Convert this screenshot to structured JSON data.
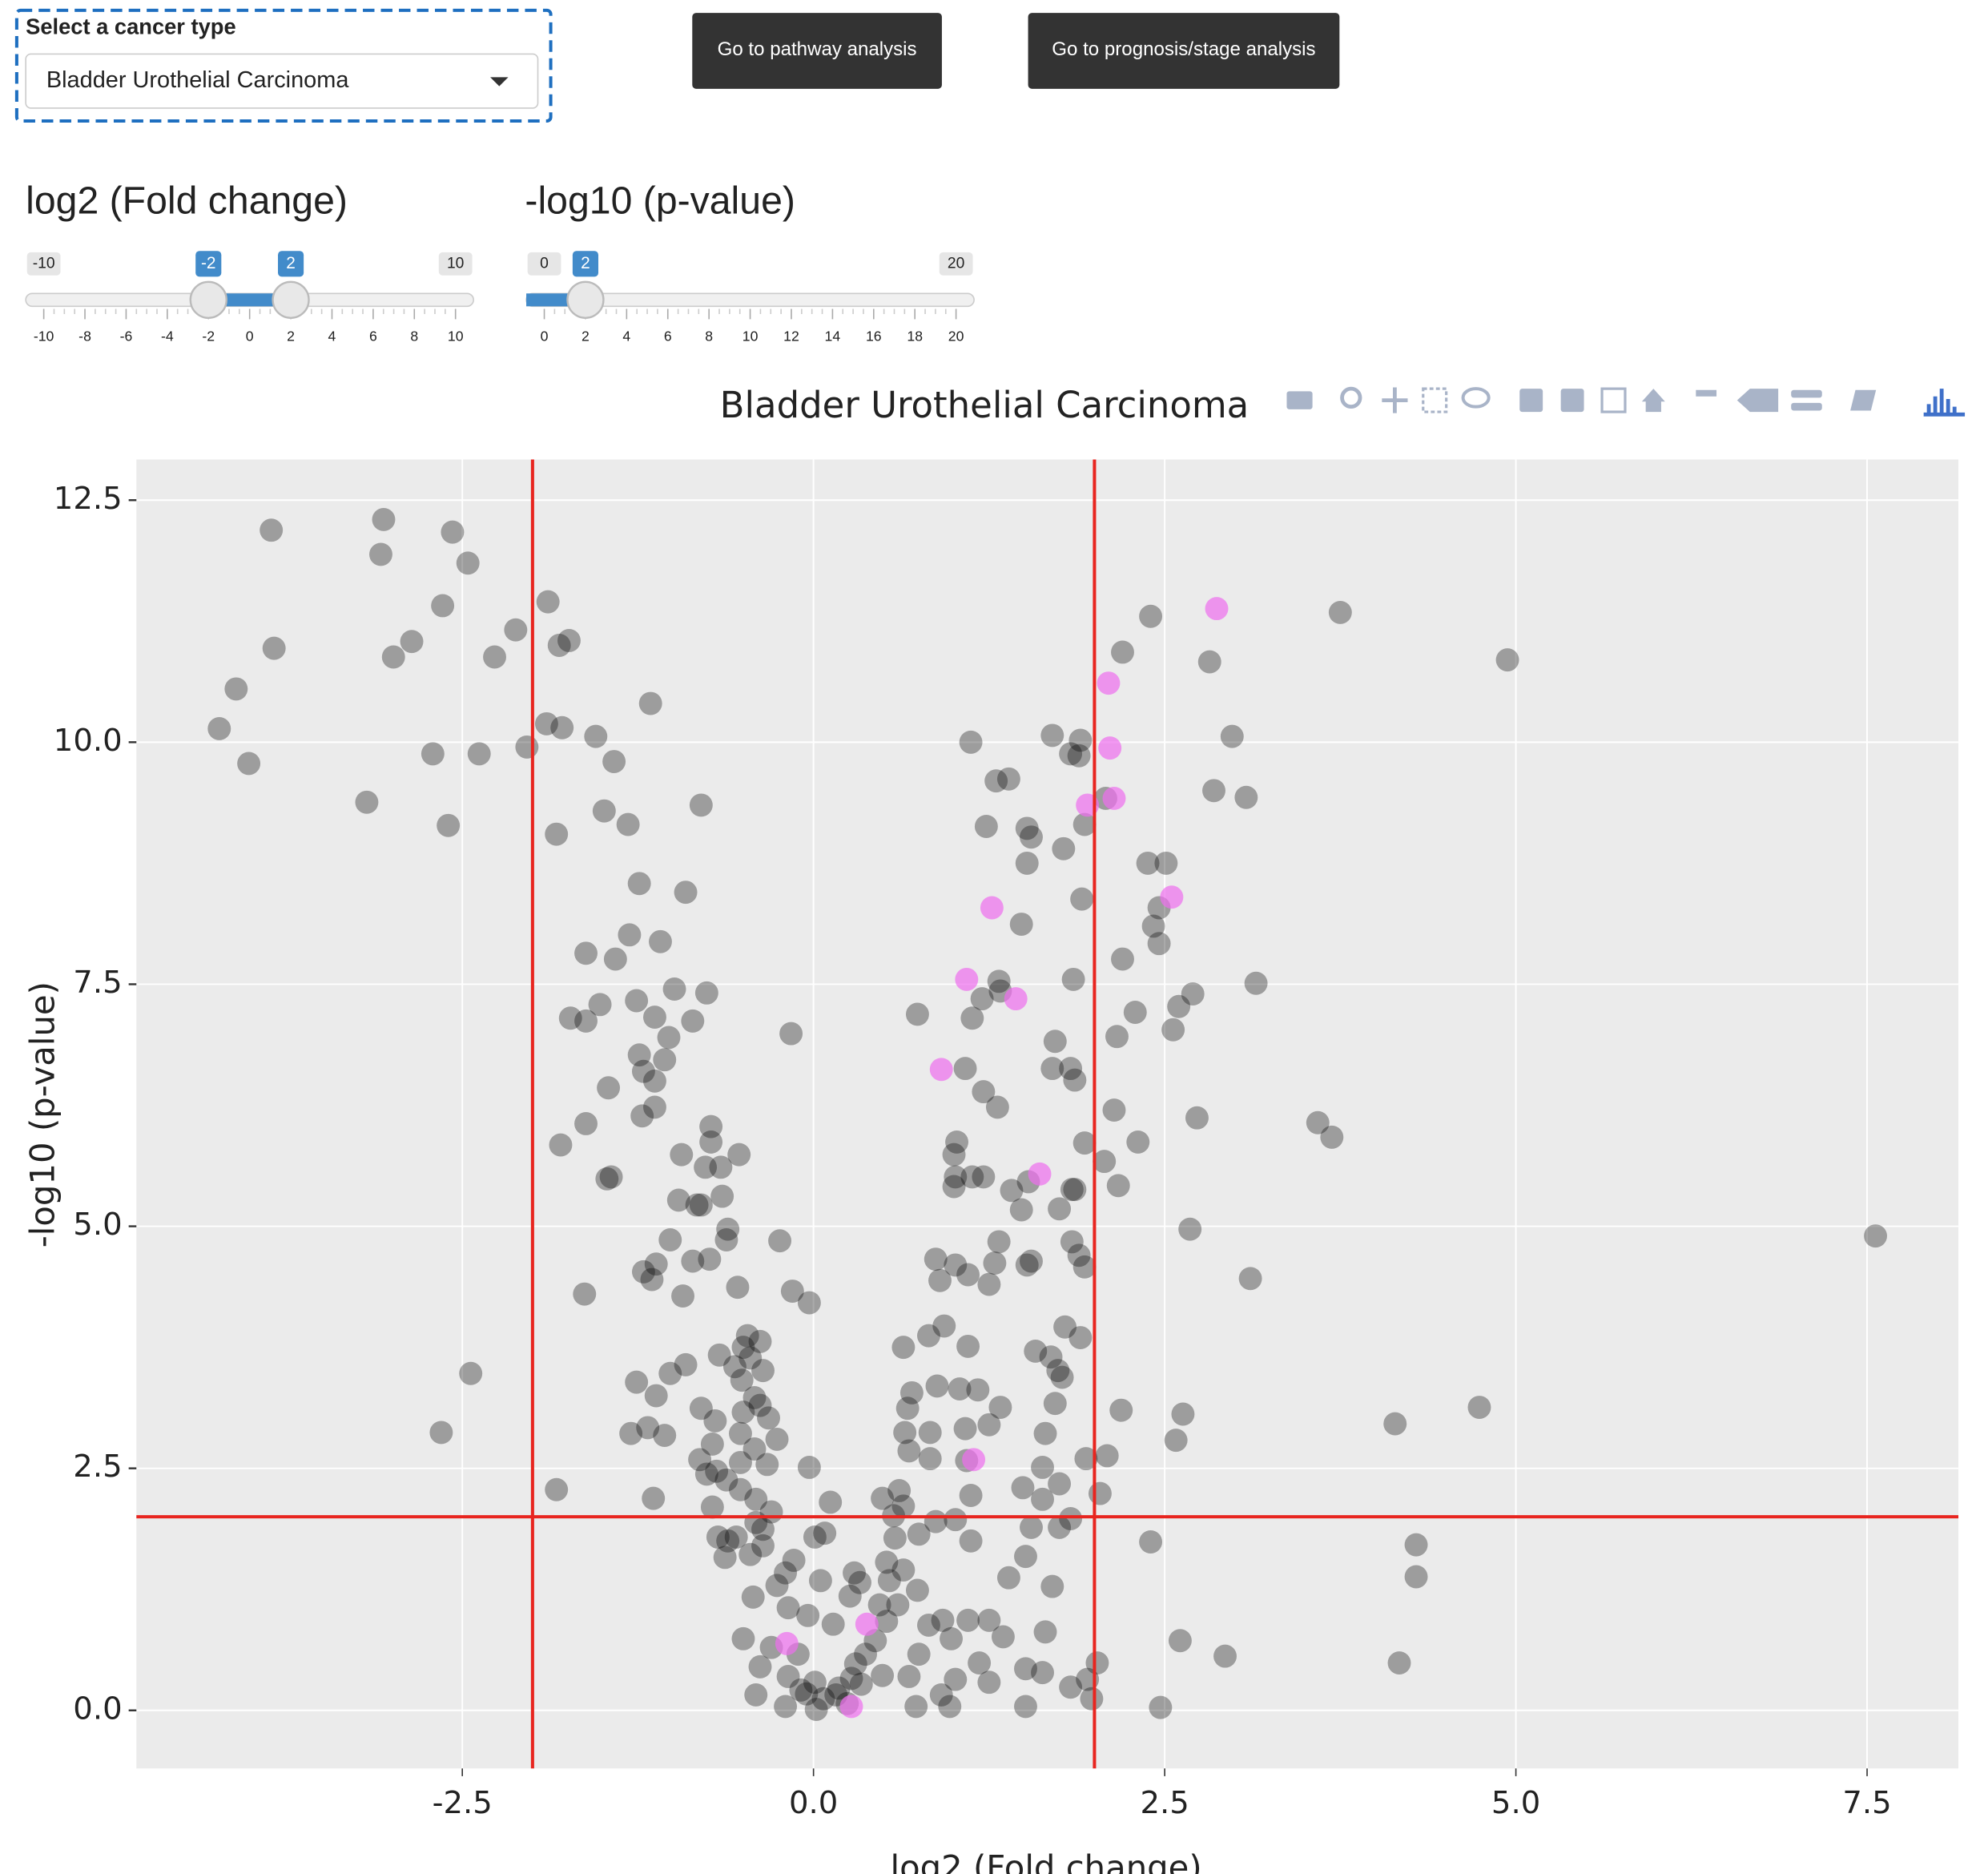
{
  "selector": {
    "label": "Select a cancer type",
    "selected": "Bladder Urothelial Carcinoma"
  },
  "buttons": [
    "Go to pathway analysis",
    "Go to prognosis/stage analysis"
  ],
  "sliders": [
    {
      "label": "log2 (Fold change)",
      "min": -10,
      "max": 10,
      "values": [
        -2,
        2
      ],
      "ticks": [
        -10,
        -8,
        -6,
        -4,
        -2,
        0,
        2,
        4,
        6,
        8,
        10
      ]
    },
    {
      "label": "-log10 (p-value)",
      "min": 0,
      "max": 20,
      "values": [
        2
      ],
      "ticks": [
        0,
        2,
        4,
        6,
        8,
        10,
        12,
        14,
        16,
        18,
        20
      ]
    }
  ],
  "chart_data": {
    "type": "scatter",
    "title": "Bladder Urothelial Carcinoma",
    "x_label": "log2 (Fold change)",
    "y_label": "-log10 (p-value)",
    "xlim": [
      -4.82,
      8.15
    ],
    "ylim": [
      -0.6,
      12.92
    ],
    "xticks": [
      {
        "value": -2.5,
        "label": "-2.5"
      },
      {
        "value": 0,
        "label": "0.0"
      },
      {
        "value": 2.5,
        "label": "2.5"
      },
      {
        "value": 5,
        "label": "5.0"
      },
      {
        "value": 7.5,
        "label": "7.5"
      }
    ],
    "yticks": [
      {
        "value": 0,
        "label": "0.0"
      },
      {
        "value": 2.5,
        "label": "2.5"
      },
      {
        "value": 5,
        "label": "5.0"
      },
      {
        "value": 7.5,
        "label": "7.5"
      },
      {
        "value": 10,
        "label": "10.0"
      },
      {
        "value": 12.5,
        "label": "12.5"
      }
    ],
    "grid": true,
    "thresholds": {
      "x": [
        -2,
        2
      ],
      "y": 2,
      "color": "#e8251f"
    },
    "series": [
      {
        "color": "rgba(0,0,0,0.33)",
        "x": [
          -3.86,
          -3.06,
          -2.57,
          -2.46,
          -3.08,
          -3.84,
          -4.11,
          -4.23,
          -4.02,
          -2.64,
          -2.86,
          -2.99,
          -2.27,
          -2.12,
          -1.89,
          -1.81,
          -1.74,
          -2.71,
          -2.38,
          -2.04,
          -1.9,
          -1.79,
          -3.18,
          -2.6,
          -1.55,
          -1.42,
          -1.16,
          -1.83,
          -1.49,
          -1.32,
          -0.8,
          -1.24,
          -0.91,
          -1.31,
          -1.09,
          -1.62,
          -1.41,
          -0.99,
          -0.76,
          -1.52,
          -1.26,
          -1.73,
          -1.62,
          -1.13,
          -0.86,
          -1.03,
          -1.24,
          -1.06,
          -1.21,
          -1.13,
          -1.46,
          -1.13,
          -1.22,
          -1.62,
          -1.8,
          -0.73,
          -0.73,
          -0.94,
          -0.53,
          -0.77,
          -0.66,
          -1.47,
          -1.44,
          -0.65,
          -0.96,
          -0.83,
          -0.8,
          -0.61,
          -0.62,
          -1.02,
          -0.24,
          -1.12,
          -0.86,
          -0.74,
          -1.21,
          -1.15,
          -0.54,
          -1.63,
          -0.93,
          -0.15,
          -0.03,
          -0.47,
          -0.38,
          -0.5,
          -0.67,
          -0.45,
          -0.91,
          -0.56,
          -0.36,
          -2.44,
          -1.02,
          -1.26,
          -0.51,
          -1.12,
          -0.42,
          -0.38,
          -0.8,
          -0.5,
          -0.32,
          -0.7,
          -1.18,
          -2.65,
          -1.3,
          -1.06,
          -0.52,
          -0.26,
          -0.72,
          -0.42,
          -0.81,
          -0.52,
          -0.33,
          -0.03,
          -0.69,
          -0.76,
          -0.62,
          -0.52,
          -1.83,
          -1.14,
          -0.41,
          0.12,
          -0.72,
          -0.3,
          -0.41,
          -0.36,
          -0.55,
          -0.61,
          -0.68,
          0.08,
          0.01,
          -0.36,
          -0.45,
          -0.63,
          -0.14,
          -0.2,
          -0.26,
          -0.43,
          -0.18,
          -0.04,
          0.14,
          -0.5,
          -0.3,
          -0.11,
          -0.38,
          -0.18,
          0.01,
          -0.41,
          -0.2,
          -0.05,
          0.07,
          0.18,
          0.27,
          0.3,
          0.37,
          0.49,
          0.24,
          0.02,
          0.44,
          0.52,
          0.6,
          0.54,
          0.33,
          0.64,
          0.74,
          0.82,
          0.75,
          0.68,
          0.73,
          0.97,
          0.91,
          1.01,
          1.25,
          1.18,
          0.98,
          0.92,
          1.1,
          1.25,
          1.35,
          1.39,
          1.51,
          1.7,
          1.65,
          1.51,
          1.63,
          1.51,
          1.83,
          1.95,
          2.02,
          1.98,
          1.55,
          1.75,
          1.83,
          0.87,
          1.12,
          1.01,
          0.75,
          0.58,
          0.57,
          0.61,
          0.49,
          0.64,
          1.12,
          1.49,
          1.63,
          1.75,
          2.04,
          2.09,
          1.94,
          1.63,
          1.09,
          0.83,
          0.68,
          0.83,
          0.65,
          1.08,
          1.25,
          1.65,
          1.72,
          2.19,
          2.63,
          2.58,
          1.33,
          1.04,
          0.7,
          0.67,
          0.88,
          1.17,
          1.77,
          1.58,
          1.69,
          1.74,
          0.64,
          0.82,
          0.93,
          1.1,
          1.79,
          1.9,
          0.9,
          0.87,
          1.01,
          1.1,
          1.25,
          1.29,
          1.32,
          1.55,
          1.52,
          1.89,
          1.84,
          1.93,
          1.48,
          1.41,
          1.53,
          1.13,
          1.01,
          1.21,
          1.0,
          1.75,
          1.84,
          1.86,
          2.07,
          2.17,
          1.93,
          1.02,
          1.0,
          2.14,
          2.31,
          2.73,
          1.21,
          1.31,
          1.08,
          1.7,
          1.83,
          1.86,
          1.72,
          2.16,
          2.56,
          2.29,
          2.6,
          2.7,
          3.15,
          1.13,
          1.2,
          1.32,
          1.33,
          0.74,
          -0.16,
          1.85,
          2.2,
          2.46,
          2.42,
          2.46,
          1.48,
          1.91,
          2.38,
          2.51,
          1.52,
          1.78,
          1.23,
          1.52,
          1.55,
          1.93,
          2.08,
          2.85,
          3.08,
          1.3,
          1.39,
          1.83,
          1.89,
          1.7,
          1.9,
          1.12,
          2.98,
          2.82,
          2.2,
          2.4,
          3.75,
          4.94,
          3.59,
          3.69,
          2.68,
          3.11,
          7.56,
          4.74,
          4.14,
          4.29,
          4.29,
          4.17,
          2.93,
          2.61,
          2.47,
          2.4,
          0.05,
          0.26,
          0.29,
          0.47,
          0.52,
          0.34,
          -0.09,
          0.16
        ],
        "values": [
          12.19,
          12.3,
          12.17,
          11.85,
          11.94,
          10.97,
          10.55,
          10.14,
          9.78,
          11.41,
          11.04,
          10.88,
          10.88,
          11.16,
          11.45,
          11.0,
          11.05,
          9.88,
          9.88,
          9.95,
          10.19,
          10.15,
          9.38,
          9.14,
          10.06,
          9.8,
          10.4,
          9.05,
          9.29,
          9.15,
          9.35,
          8.54,
          8.45,
          8.01,
          7.94,
          7.82,
          7.76,
          7.45,
          7.41,
          7.29,
          7.33,
          7.15,
          7.12,
          7.16,
          7.12,
          6.95,
          6.77,
          6.72,
          6.6,
          6.5,
          6.43,
          6.23,
          6.14,
          6.06,
          5.84,
          6.03,
          5.87,
          5.74,
          5.74,
          5.61,
          5.61,
          5.49,
          5.51,
          5.31,
          5.27,
          5.22,
          5.22,
          4.97,
          4.86,
          4.86,
          4.85,
          4.61,
          4.64,
          4.66,
          4.53,
          4.45,
          4.37,
          4.3,
          4.28,
          4.33,
          4.21,
          3.87,
          3.81,
          3.75,
          3.67,
          3.64,
          3.57,
          3.55,
          3.51,
          3.48,
          3.48,
          3.39,
          3.41,
          3.25,
          3.23,
          3.15,
          3.12,
          3.08,
          3.02,
          2.99,
          2.92,
          2.87,
          2.86,
          2.84,
          2.86,
          2.8,
          2.75,
          2.7,
          2.59,
          2.56,
          2.54,
          2.51,
          2.47,
          2.44,
          2.38,
          2.28,
          2.28,
          2.19,
          2.18,
          2.15,
          2.1,
          2.05,
          1.94,
          1.87,
          1.79,
          1.75,
          1.79,
          1.83,
          1.79,
          1.7,
          1.61,
          1.58,
          1.55,
          1.42,
          1.29,
          1.17,
          1.06,
          0.98,
          0.89,
          0.74,
          0.65,
          0.58,
          0.45,
          0.35,
          0.29,
          0.16,
          0.04,
          0.17,
          0.12,
          0.23,
          0.33,
          0.48,
          0.58,
          0.36,
          0.07,
          0.01,
          0.72,
          0.92,
          1.09,
          1.34,
          1.32,
          1.45,
          1.24,
          0.88,
          0.58,
          0.35,
          0.04,
          0.04,
          0.16,
          0.32,
          0.29,
          0.49,
          0.74,
          0.93,
          0.93,
          0.93,
          0.76,
          1.37,
          1.59,
          1.28,
          0.81,
          0.43,
          0.39,
          0.04,
          0.24,
          0.32,
          0.49,
          0.12,
          1.89,
          1.89,
          1.98,
          1.95,
          1.75,
          1.97,
          1.82,
          1.78,
          2.01,
          2.27,
          2.19,
          2.11,
          2.22,
          2.3,
          2.18,
          2.34,
          2.24,
          2.63,
          2.6,
          2.51,
          2.58,
          2.6,
          2.68,
          2.87,
          2.87,
          2.91,
          2.95,
          2.86,
          3.17,
          3.1,
          3.06,
          2.79,
          3.13,
          3.32,
          3.28,
          3.12,
          3.35,
          3.31,
          3.44,
          3.71,
          3.65,
          3.51,
          3.75,
          3.87,
          3.97,
          3.76,
          3.96,
          3.85,
          4.44,
          4.66,
          4.6,
          4.5,
          4.4,
          4.62,
          4.84,
          4.64,
          4.6,
          4.7,
          4.84,
          4.58,
          5.17,
          5.37,
          5.46,
          5.51,
          5.51,
          5.51,
          5.41,
          5.18,
          5.38,
          5.38,
          5.67,
          5.42,
          5.86,
          5.87,
          5.74,
          6.2,
          5.87,
          6.12,
          6.39,
          6.23,
          6.63,
          6.63,
          6.63,
          6.51,
          6.91,
          6.96,
          7.03,
          7.21,
          7.27,
          7.4,
          7.51,
          7.15,
          7.35,
          7.53,
          7.43,
          7.19,
          6.99,
          7.55,
          7.76,
          7.92,
          8.1,
          8.29,
          8.12,
          8.38,
          8.75,
          8.75,
          8.75,
          8.9,
          9.13,
          9.11,
          9.02,
          9.15,
          9.42,
          9.5,
          9.43,
          9.6,
          9.62,
          9.88,
          9.86,
          10.07,
          10.02,
          10.0,
          10.06,
          10.83,
          10.93,
          11.3,
          11.34,
          10.85,
          6.07,
          5.92,
          4.97,
          4.46,
          4.9,
          3.13,
          2.96,
          1.71,
          1.38,
          0.49,
          0.56,
          0.72,
          0.03,
          1.74,
          1.34,
          1.18,
          1.42,
          1.09,
          1.53,
          0.27,
          0.21,
          0.16
        ]
      },
      {
        "color": "rgba(238,110,238,0.7)",
        "x": [
          2.87,
          2.1,
          2.11,
          2.14,
          1.95,
          2.55,
          1.27,
          1.09,
          1.44,
          0.91,
          1.61,
          1.14,
          -0.19,
          0.38,
          0.27
        ],
        "values": [
          11.38,
          10.61,
          9.94,
          9.42,
          9.35,
          8.4,
          8.29,
          7.55,
          7.35,
          6.62,
          5.54,
          2.59,
          0.69,
          0.89,
          0.04
        ]
      }
    ]
  }
}
